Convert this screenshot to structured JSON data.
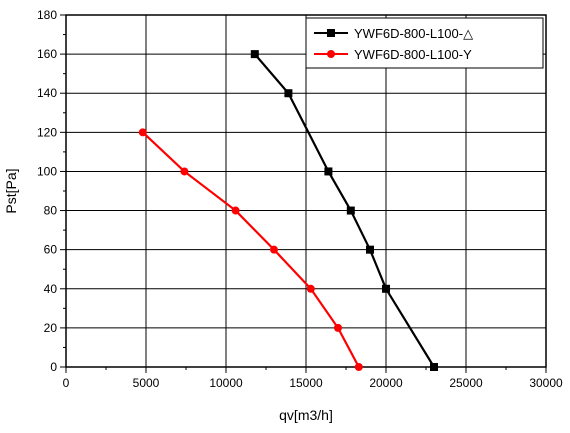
{
  "chart_data": {
    "type": "line",
    "title": "",
    "xlabel": "qv[m3/h]",
    "ylabel": "Pst[Pa]",
    "xlim": [
      0,
      30000
    ],
    "ylim": [
      0,
      180
    ],
    "x_ticks": [
      0,
      5000,
      10000,
      15000,
      20000,
      25000,
      30000
    ],
    "y_ticks": [
      0,
      20,
      40,
      60,
      80,
      100,
      120,
      140,
      160,
      180
    ],
    "grid": true,
    "legend_position": "top-right",
    "series": [
      {
        "name": "YWF6D-800-L100-△",
        "color": "#000000",
        "marker": "square",
        "x": [
          11800,
          13900,
          16400,
          17800,
          19000,
          20000,
          23000
        ],
        "y": [
          160,
          140,
          100,
          80,
          60,
          40,
          0
        ]
      },
      {
        "name": "YWF6D-800-L100-Y",
        "color": "#ff0000",
        "marker": "circle",
        "x": [
          4800,
          7400,
          10600,
          13000,
          15300,
          17000,
          18300
        ],
        "y": [
          120,
          100,
          80,
          60,
          40,
          20,
          0
        ]
      }
    ]
  }
}
